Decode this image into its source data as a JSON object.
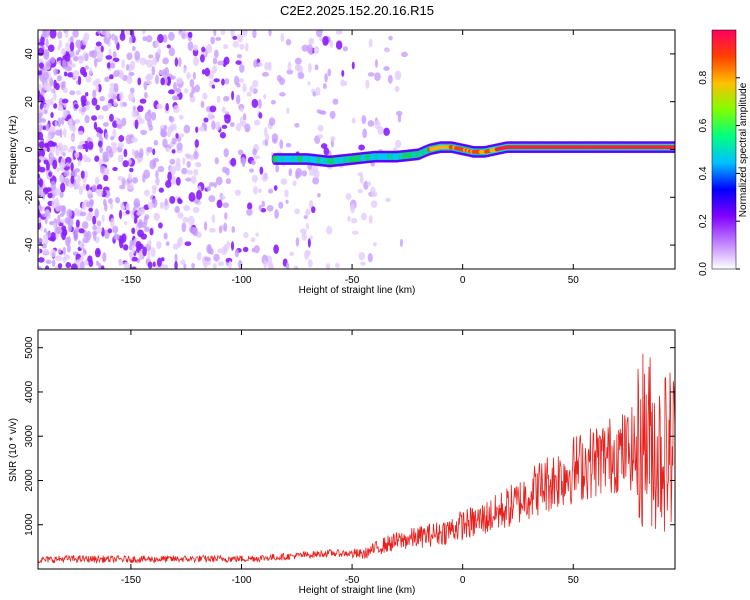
{
  "title": "C2E2.2025.152.20.16.R15",
  "chart_data": [
    {
      "type": "heatmap",
      "xlabel": "Height of straight line (km)",
      "ylabel": "Frequency (Hz)",
      "xlim": [
        -192,
        96
      ],
      "ylim": [
        -50,
        50
      ],
      "xticks": [
        -150,
        -100,
        -50,
        0,
        50
      ],
      "yticks": [
        -40,
        -20,
        0,
        20,
        40
      ],
      "colorbar": {
        "label": "Normalized spectral amplitude",
        "range": [
          0,
          1
        ],
        "ticks": [
          0.0,
          0.2,
          0.4,
          0.6,
          0.8
        ],
        "colors": [
          "#ffffff",
          "#c080ff",
          "#8000ff",
          "#0000ff",
          "#00c0ff",
          "#00ff80",
          "#80ff00",
          "#ffc000",
          "#ff4000",
          "#ff0060"
        ]
      },
      "noise_region_x": [
        -192,
        -45
      ],
      "signal_band": {
        "start_x": -85,
        "center_y": [
          [
            -85,
            -4
          ],
          [
            -70,
            -4
          ],
          [
            -60,
            -5
          ],
          [
            -50,
            -4
          ],
          [
            -40,
            -3
          ],
          [
            -30,
            -3
          ],
          [
            -20,
            -2
          ],
          [
            -15,
            0
          ],
          [
            -10,
            1
          ],
          [
            -5,
            1
          ],
          [
            0,
            0
          ],
          [
            5,
            -1
          ],
          [
            10,
            -1
          ],
          [
            15,
            0
          ],
          [
            20,
            1
          ],
          [
            40,
            1
          ],
          [
            60,
            1
          ],
          [
            80,
            1
          ],
          [
            96,
            1
          ]
        ]
      }
    },
    {
      "type": "line",
      "xlabel": "Height of straight line (km)",
      "ylabel": "SNR (10 * v/v)",
      "xlim": [
        -192,
        96
      ],
      "ylim": [
        0,
        5400
      ],
      "xticks": [
        -150,
        -100,
        -50,
        0,
        50
      ],
      "yticks": [
        1000,
        2000,
        3000,
        4000,
        5000
      ],
      "series": [
        {
          "color": "#e8201c",
          "points": [
            [
              -192,
              200
            ],
            [
              -180,
              230
            ],
            [
              -160,
              220
            ],
            [
              -140,
              220
            ],
            [
              -120,
              230
            ],
            [
              -100,
              230
            ],
            [
              -90,
              250
            ],
            [
              -80,
              280
            ],
            [
              -70,
              320
            ],
            [
              -60,
              360
            ],
            [
              -50,
              350
            ],
            [
              -45,
              330
            ],
            [
              -40,
              450
            ],
            [
              -35,
              550
            ],
            [
              -30,
              620
            ],
            [
              -20,
              720
            ],
            [
              -10,
              820
            ],
            [
              -5,
              900
            ],
            [
              0,
              1000
            ],
            [
              5,
              1050
            ],
            [
              10,
              1150
            ],
            [
              15,
              1250
            ],
            [
              20,
              1380
            ],
            [
              25,
              1500
            ],
            [
              30,
              1700
            ],
            [
              35,
              1850
            ],
            [
              40,
              1980
            ],
            [
              45,
              2100
            ],
            [
              50,
              2250
            ],
            [
              55,
              2350
            ],
            [
              60,
              2450
            ],
            [
              65,
              2550
            ],
            [
              70,
              2620
            ],
            [
              75,
              2680
            ],
            [
              78,
              2750
            ],
            [
              80,
              2700
            ],
            [
              82,
              3100
            ],
            [
              85,
              2900
            ],
            [
              88,
              2600
            ],
            [
              92,
              2700
            ],
            [
              96,
              2800
            ]
          ]
        }
      ]
    }
  ]
}
